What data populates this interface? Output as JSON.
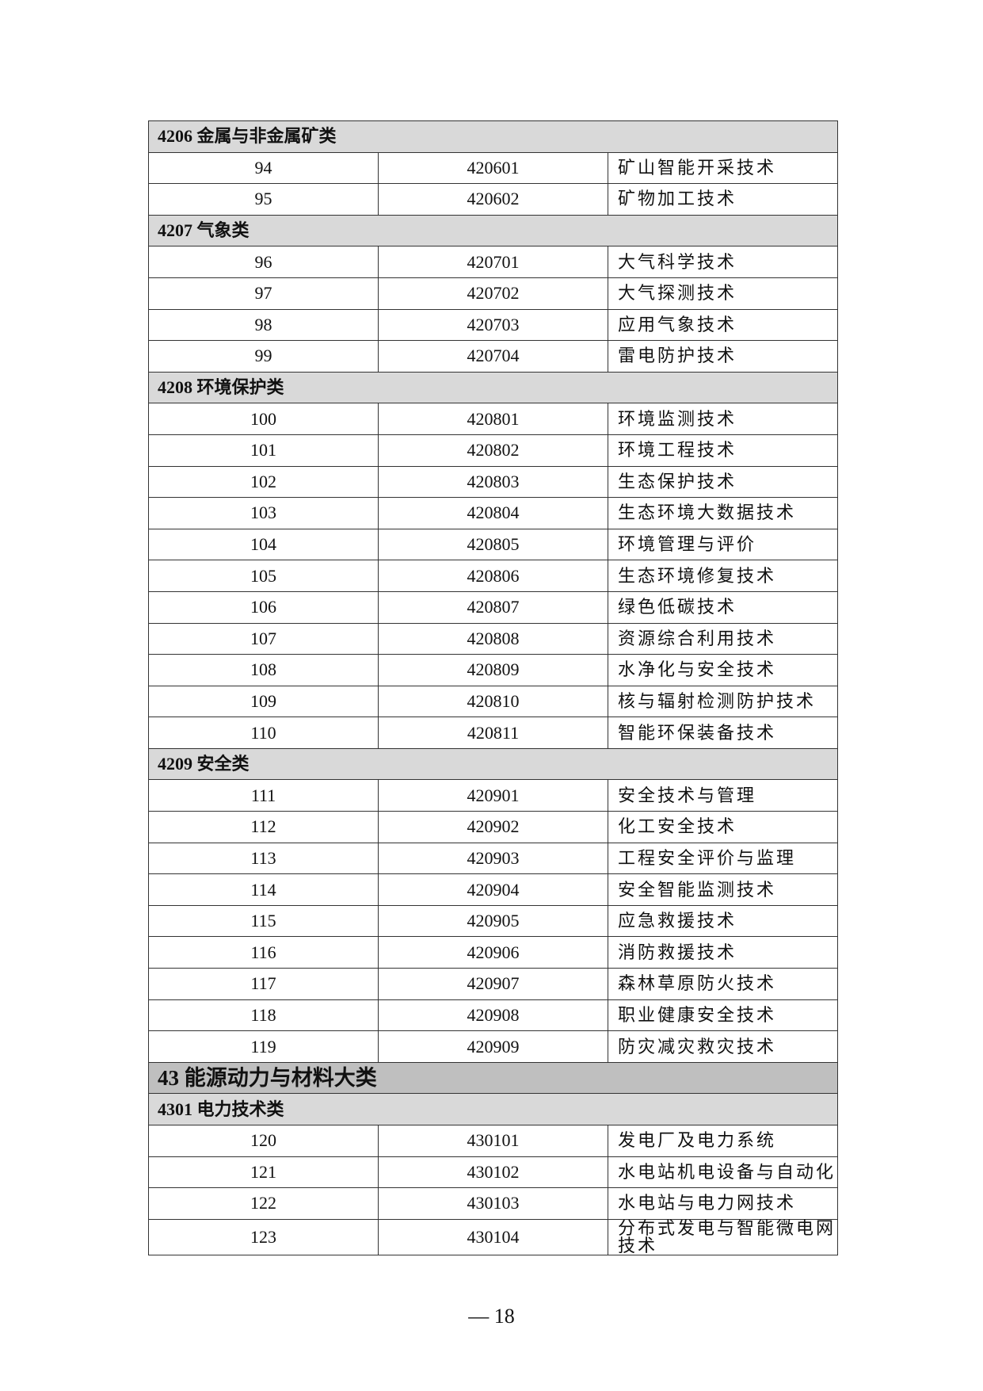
{
  "sections": [
    {
      "type": "sub",
      "label": "4206 金属与非金属矿类"
    },
    {
      "type": "row",
      "no": "94",
      "code": "420601",
      "name": "矿山智能开采技术"
    },
    {
      "type": "row",
      "no": "95",
      "code": "420602",
      "name": "矿物加工技术"
    },
    {
      "type": "sub",
      "label": "4207 气象类"
    },
    {
      "type": "row",
      "no": "96",
      "code": "420701",
      "name": "大气科学技术"
    },
    {
      "type": "row",
      "no": "97",
      "code": "420702",
      "name": "大气探测技术"
    },
    {
      "type": "row",
      "no": "98",
      "code": "420703",
      "name": "应用气象技术"
    },
    {
      "type": "row",
      "no": "99",
      "code": "420704",
      "name": "雷电防护技术"
    },
    {
      "type": "sub",
      "label": "4208 环境保护类"
    },
    {
      "type": "row",
      "no": "100",
      "code": "420801",
      "name": "环境监测技术"
    },
    {
      "type": "row",
      "no": "101",
      "code": "420802",
      "name": "环境工程技术"
    },
    {
      "type": "row",
      "no": "102",
      "code": "420803",
      "name": "生态保护技术"
    },
    {
      "type": "row",
      "no": "103",
      "code": "420804",
      "name": "生态环境大数据技术"
    },
    {
      "type": "row",
      "no": "104",
      "code": "420805",
      "name": "环境管理与评价"
    },
    {
      "type": "row",
      "no": "105",
      "code": "420806",
      "name": "生态环境修复技术"
    },
    {
      "type": "row",
      "no": "106",
      "code": "420807",
      "name": "绿色低碳技术"
    },
    {
      "type": "row",
      "no": "107",
      "code": "420808",
      "name": "资源综合利用技术"
    },
    {
      "type": "row",
      "no": "108",
      "code": "420809",
      "name": "水净化与安全技术"
    },
    {
      "type": "row",
      "no": "109",
      "code": "420810",
      "name": "核与辐射检测防护技术"
    },
    {
      "type": "row",
      "no": "110",
      "code": "420811",
      "name": "智能环保装备技术"
    },
    {
      "type": "sub",
      "label": "4209 安全类"
    },
    {
      "type": "row",
      "no": "111",
      "code": "420901",
      "name": "安全技术与管理"
    },
    {
      "type": "row",
      "no": "112",
      "code": "420902",
      "name": "化工安全技术"
    },
    {
      "type": "row",
      "no": "113",
      "code": "420903",
      "name": "工程安全评价与监理"
    },
    {
      "type": "row",
      "no": "114",
      "code": "420904",
      "name": "安全智能监测技术"
    },
    {
      "type": "row",
      "no": "115",
      "code": "420905",
      "name": "应急救援技术"
    },
    {
      "type": "row",
      "no": "116",
      "code": "420906",
      "name": "消防救援技术"
    },
    {
      "type": "row",
      "no": "117",
      "code": "420907",
      "name": "森林草原防火技术"
    },
    {
      "type": "row",
      "no": "118",
      "code": "420908",
      "name": "职业健康安全技术"
    },
    {
      "type": "row",
      "no": "119",
      "code": "420909",
      "name": "防灾减灾救灾技术"
    },
    {
      "type": "major",
      "label": "43 能源动力与材料大类"
    },
    {
      "type": "sub",
      "label": "4301 电力技术类"
    },
    {
      "type": "row",
      "no": "120",
      "code": "430101",
      "name": "发电厂及电力系统"
    },
    {
      "type": "row",
      "no": "121",
      "code": "430102",
      "name": "水电站机电设备与自动化"
    },
    {
      "type": "row",
      "no": "122",
      "code": "430103",
      "name": "水电站与电力网技术"
    },
    {
      "type": "row",
      "no": "123",
      "code": "430104",
      "name": "分布式发电与智能微电网技术"
    }
  ],
  "page_number": "— 18"
}
